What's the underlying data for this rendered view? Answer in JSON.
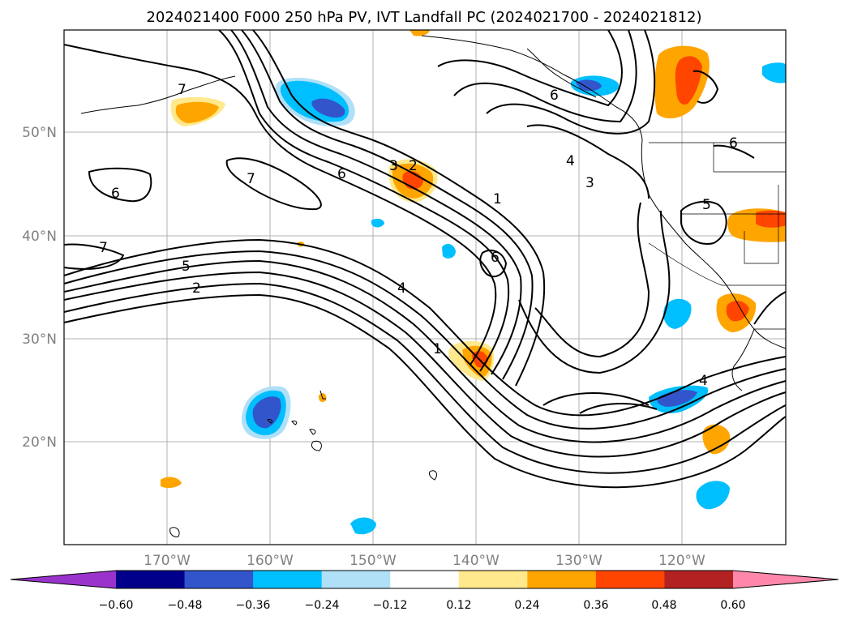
{
  "title": "2024021400 F000 250 hPa PV, IVT Landfall PC (2024021700 - 2024021812)",
  "map": {
    "lat_ticks": [
      "50°N",
      "40°N",
      "30°N",
      "20°N"
    ],
    "lon_ticks": [
      "170°W",
      "160°W",
      "150°W",
      "140°W",
      "130°W",
      "120°W"
    ],
    "gridlines": true,
    "extent": {
      "lon_min": -180,
      "lon_max": -110,
      "lat_min": 10,
      "lat_max": 60
    },
    "contour_labels": [
      "7",
      "6",
      "7",
      "6",
      "7",
      "5",
      "2",
      "6",
      "3",
      "2",
      "1",
      "4",
      "3",
      "6",
      "4",
      "1",
      "5",
      "6",
      "4"
    ]
  },
  "colorbar": {
    "ticks": [
      "−0.60",
      "−0.48",
      "−0.36",
      "−0.24",
      "−0.12",
      "0.12",
      "0.24",
      "0.36",
      "0.48",
      "0.60"
    ],
    "colors": [
      "#9933cc",
      "#00008b",
      "#3355cc",
      "#00bfff",
      "#b0e0f8",
      "#ffffff",
      "#ffe98c",
      "#ffa500",
      "#ff4500",
      "#b22222",
      "#ff88aa"
    ],
    "extend": "both"
  }
}
